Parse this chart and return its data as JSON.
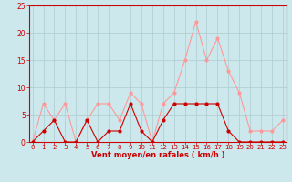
{
  "x": [
    0,
    1,
    2,
    3,
    4,
    5,
    6,
    7,
    8,
    9,
    10,
    11,
    12,
    13,
    14,
    15,
    16,
    17,
    18,
    19,
    20,
    21,
    22,
    23
  ],
  "wind_avg": [
    0,
    2,
    4,
    0,
    0,
    4,
    0,
    2,
    2,
    7,
    2,
    0,
    4,
    7,
    7,
    7,
    7,
    7,
    2,
    0,
    0,
    0,
    0,
    0
  ],
  "wind_gust": [
    0,
    7,
    4,
    7,
    0,
    4,
    7,
    7,
    4,
    9,
    7,
    0,
    7,
    9,
    15,
    22,
    15,
    19,
    13,
    9,
    2,
    2,
    2,
    4
  ],
  "bg_color": "#cce8ec",
  "grid_color": "#aacccc",
  "line_avg_color": "#cc0000",
  "line_gust_color": "#ff9999",
  "marker_avg_color": "#cc0000",
  "marker_gust_color": "#ff9999",
  "xlabel": "Vent moyen/en rafales ( km/h )",
  "ylim": [
    0,
    25
  ],
  "yticks": [
    0,
    5,
    10,
    15,
    20,
    25
  ],
  "tick_color": "#cc0000",
  "xlabel_color": "#cc0000",
  "axis_line_color": "#cc0000",
  "spine_color": "#cc0000"
}
